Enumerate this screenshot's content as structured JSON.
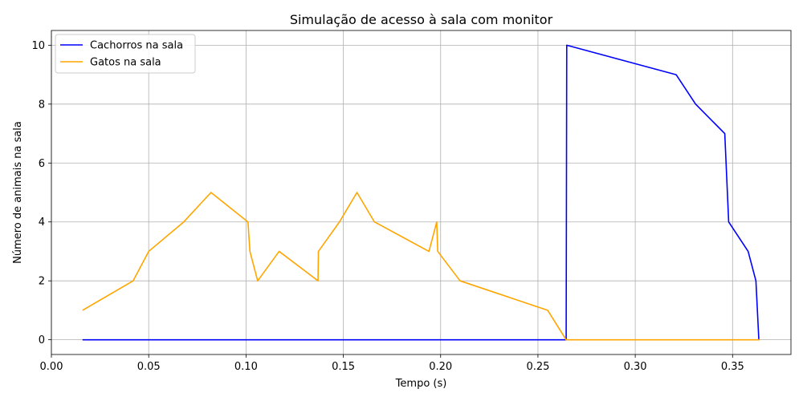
{
  "chart_data": {
    "type": "line",
    "title": "Simulação de acesso à sala com monitor",
    "xlabel": "Tempo (s)",
    "ylabel": "Número de animais na sala",
    "xlim": [
      0,
      0.38
    ],
    "ylim": [
      -0.5,
      10.5
    ],
    "xticks": [
      0.0,
      0.05,
      0.1,
      0.15,
      0.2,
      0.25,
      0.3,
      0.35
    ],
    "xtick_labels": [
      "0.00",
      "0.05",
      "0.10",
      "0.15",
      "0.20",
      "0.25",
      "0.30",
      "0.35"
    ],
    "yticks": [
      0,
      2,
      4,
      6,
      8,
      10
    ],
    "ytick_labels": [
      "0",
      "2",
      "4",
      "6",
      "8",
      "10"
    ],
    "grid": true,
    "legend_position": "top-left",
    "series": [
      {
        "name": "Cachorros na sala",
        "color": "#0000ff",
        "x": [
          0.016,
          0.2645,
          0.2648,
          0.321,
          0.331,
          0.346,
          0.348,
          0.358,
          0.362,
          0.3635
        ],
        "y": [
          0,
          0,
          10,
          9,
          8,
          7,
          4,
          3,
          2,
          0
        ]
      },
      {
        "name": "Gatos na sala",
        "color": "#ffa500",
        "x": [
          0.016,
          0.042,
          0.05,
          0.068,
          0.082,
          0.101,
          0.102,
          0.106,
          0.117,
          0.137,
          0.1372,
          0.148,
          0.157,
          0.166,
          0.194,
          0.198,
          0.1985,
          0.21,
          0.255,
          0.2645,
          0.364
        ],
        "y": [
          1,
          2,
          3,
          4,
          5,
          4,
          3,
          2,
          3,
          2,
          3,
          4,
          5,
          4,
          3,
          4,
          3,
          2,
          1,
          0,
          0
        ]
      }
    ]
  }
}
